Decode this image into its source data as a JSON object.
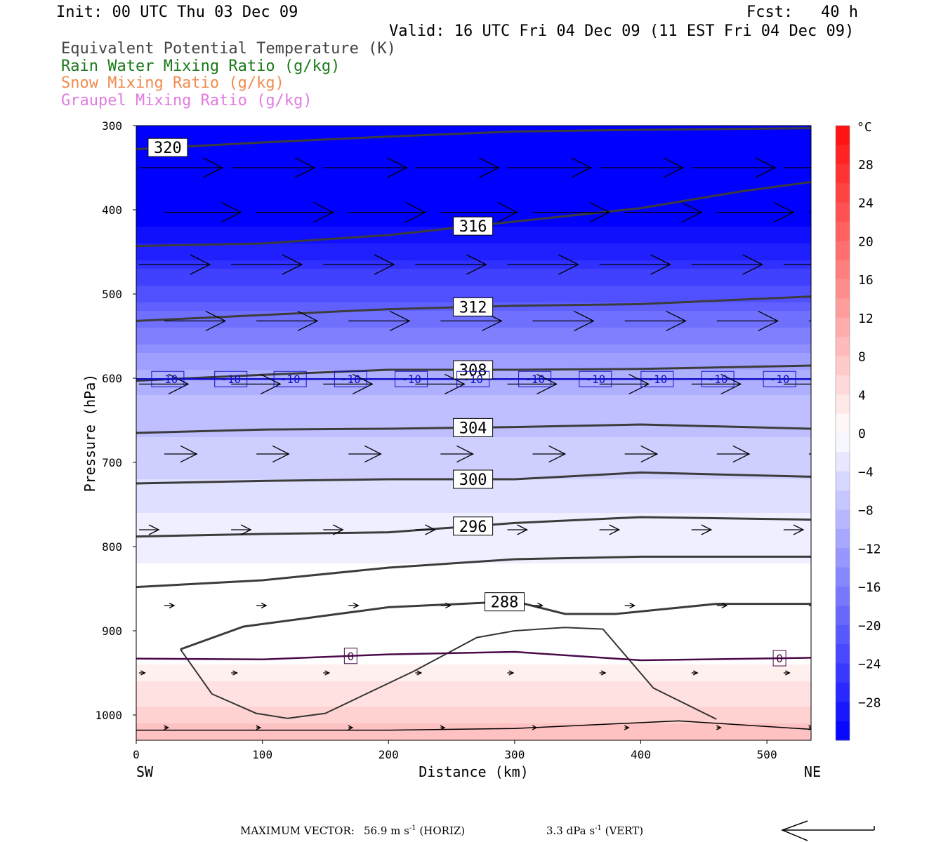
{
  "header": {
    "init": "Init: 00 UTC Thu 03 Dec 09",
    "fcst": "Fcst:   40 h",
    "valid": "Valid: 16 UTC Fri 04 Dec 09 (11 EST Fri 04 Dec 09)",
    "fields": [
      {
        "text": "Equivalent Potential Temperature (K)",
        "color": "#444444"
      },
      {
        "text": "Rain Water Mixing Ratio (g/kg)",
        "color": "#1a7a1a"
      },
      {
        "text": "Snow Mixing Ratio (g/kg)",
        "color": "#f08c50"
      },
      {
        "text": "Graupel Mixing Ratio (g/kg)",
        "color": "#e27be0"
      }
    ]
  },
  "footer": {
    "max_vector_label": "MAXIMUM VECTOR:",
    "horiz_value": "56.9 m s",
    "horiz_unit": "(HORIZ)",
    "vert_value": "3.3 dPa s",
    "vert_unit": "(VERT)",
    "exponent": "-1"
  },
  "chart_data": {
    "type": "cross-section",
    "xlabel": "Distance (km)",
    "ylabel": "Pressure (hPa)",
    "x_ticks": [
      0,
      100,
      200,
      300,
      400,
      500
    ],
    "y_ticks": [
      300,
      400,
      500,
      600,
      700,
      800,
      900,
      1000
    ],
    "xlim": [
      0,
      535
    ],
    "ylim": [
      300,
      1030
    ],
    "y_inverted": true,
    "left_endpoint": "SW",
    "right_endpoint": "NE",
    "temperature_fill": {
      "unit": "°C",
      "colorbar_ticks": [
        28,
        24,
        20,
        16,
        12,
        8,
        4,
        0,
        -4,
        -8,
        -12,
        -16,
        -20,
        -24,
        -28
      ],
      "range": [
        -32,
        32
      ]
    },
    "theta_e_contours": [
      {
        "label": "320",
        "x": [
          0,
          100,
          200,
          300,
          400,
          535
        ],
        "p": [
          328,
          320,
          313,
          307,
          305,
          303
        ]
      },
      {
        "label": "316",
        "x": [
          0,
          100,
          200,
          300,
          400,
          480,
          535
        ],
        "p": [
          443,
          440,
          430,
          414,
          398,
          378,
          367
        ]
      },
      {
        "label": "312",
        "x": [
          0,
          100,
          200,
          300,
          400,
          535
        ],
        "p": [
          532,
          525,
          518,
          514,
          512,
          503
        ]
      },
      {
        "label": "308",
        "x": [
          0,
          100,
          200,
          300,
          400,
          535
        ],
        "p": [
          603,
          596,
          590,
          590,
          589,
          585
        ]
      },
      {
        "label": "304",
        "x": [
          0,
          100,
          200,
          300,
          400,
          535
        ],
        "p": [
          665,
          661,
          660,
          658,
          655,
          660
        ]
      },
      {
        "label": "300",
        "x": [
          0,
          100,
          200,
          300,
          400,
          535
        ],
        "p": [
          725,
          722,
          720,
          720,
          712,
          717
        ]
      },
      {
        "label": "296",
        "x": [
          0,
          100,
          200,
          300,
          400,
          535
        ],
        "p": [
          788,
          785,
          783,
          772,
          765,
          768
        ]
      },
      {
        "label": "",
        "x": [
          0,
          100,
          200,
          300,
          400,
          535
        ],
        "p": [
          848,
          840,
          825,
          815,
          812,
          812
        ]
      },
      {
        "label": "288",
        "x": [
          35,
          85,
          200,
          300,
          340,
          380,
          460,
          535
        ],
        "p": [
          922,
          895,
          872,
          865,
          880,
          880,
          868,
          868
        ]
      }
    ],
    "isotherms": [
      {
        "label": "-10",
        "color": "#1010c8",
        "x": [
          0,
          535
        ],
        "p": [
          601,
          601
        ]
      },
      {
        "label": "0",
        "color": "#4a0a4a",
        "x": [
          0,
          100,
          200,
          300,
          400,
          535
        ],
        "p": [
          933,
          934,
          928,
          925,
          935,
          932
        ]
      }
    ],
    "vertical_motion_contour": {
      "x": [
        35,
        60,
        95,
        120,
        150,
        220,
        270,
        300,
        340,
        370,
        410,
        460
      ],
      "p": [
        922,
        975,
        998,
        1004,
        998,
        948,
        908,
        900,
        896,
        898,
        968,
        1005
      ]
    },
    "surface_line": {
      "x": [
        0,
        100,
        200,
        300,
        430,
        535
      ],
      "p": [
        1018,
        1018,
        1018,
        1016,
        1007,
        1017
      ]
    },
    "wind_vectors": [
      {
        "p": 350,
        "len": 0.85
      },
      {
        "p": 403,
        "len": 0.78
      },
      {
        "p": 465,
        "len": 0.72
      },
      {
        "p": 532,
        "len": 0.62
      },
      {
        "p": 607,
        "len": 0.5
      },
      {
        "p": 690,
        "len": 0.33
      },
      {
        "p": 780,
        "len": 0.2
      },
      {
        "p": 870,
        "len": 0.1
      },
      {
        "p": 950,
        "len": 0.06
      },
      {
        "p": 1015,
        "len": 0.04
      }
    ]
  }
}
